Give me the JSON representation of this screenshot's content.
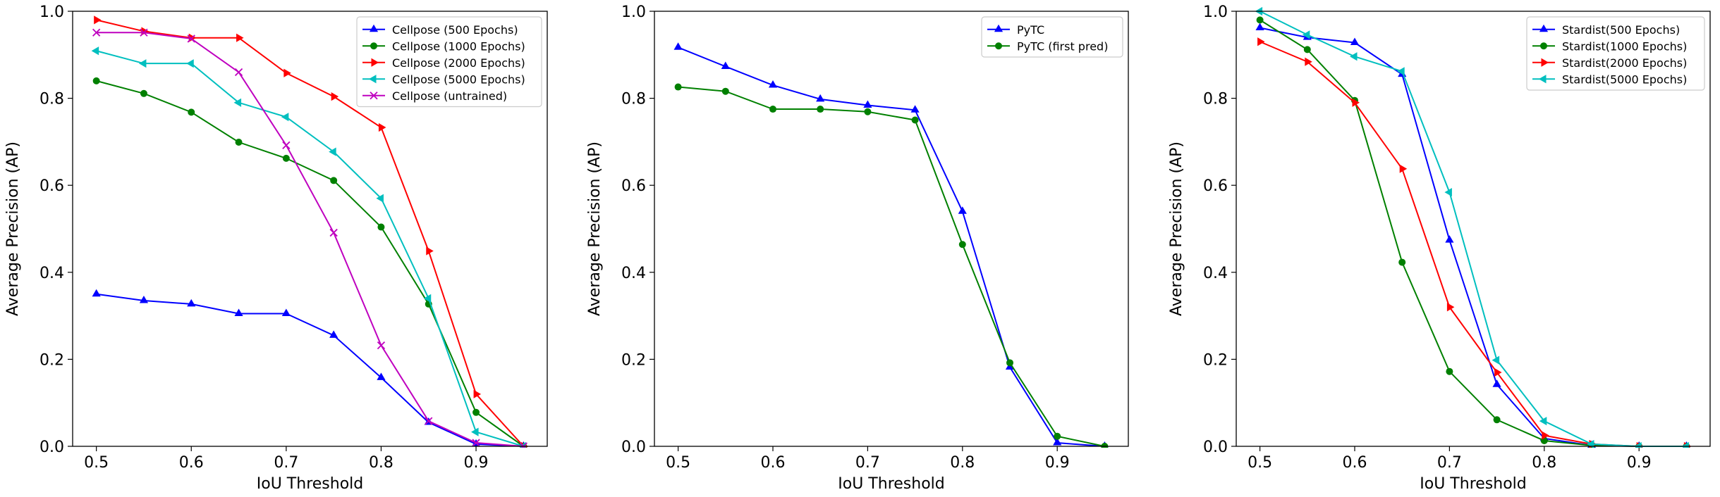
{
  "chart_data": [
    {
      "type": "line",
      "xlabel": "IoU Threshold",
      "ylabel": "Average Precision (AP)",
      "xlim": [
        0.475,
        0.975
      ],
      "ylim": [
        0.0,
        1.0
      ],
      "xticks": [
        "0.5",
        "0.6",
        "0.7",
        "0.8",
        "0.9"
      ],
      "xtick_values": [
        0.5,
        0.6,
        0.7,
        0.8,
        0.9
      ],
      "yticks": [
        "0.0",
        "0.2",
        "0.4",
        "0.6",
        "0.8",
        "1.0"
      ],
      "ytick_values": [
        0.0,
        0.2,
        0.4,
        0.6,
        0.8,
        1.0
      ],
      "grid": false,
      "legend_position": "top-right",
      "x": [
        0.5,
        0.55,
        0.6,
        0.65,
        0.7,
        0.75,
        0.8,
        0.85,
        0.9,
        0.95
      ],
      "series": [
        {
          "name": "Cellpose (500 Epochs)",
          "color": "#0000ff",
          "marker": "triangle-up",
          "values": [
            0.35,
            0.335,
            0.327,
            0.305,
            0.305,
            0.255,
            0.158,
            0.055,
            0.005,
            0.0
          ]
        },
        {
          "name": "Cellpose (1000 Epochs)",
          "color": "#008000",
          "marker": "circle",
          "values": [
            0.84,
            0.811,
            0.768,
            0.699,
            0.662,
            0.611,
            0.504,
            0.327,
            0.078,
            0.0
          ]
        },
        {
          "name": "Cellpose (2000 Epochs)",
          "color": "#ff0000",
          "marker": "triangle-right",
          "values": [
            0.98,
            0.954,
            0.939,
            0.939,
            0.858,
            0.804,
            0.733,
            0.449,
            0.12,
            0.0
          ]
        },
        {
          "name": "Cellpose (5000 Epochs)",
          "color": "#00bfbf",
          "marker": "triangle-left",
          "values": [
            0.909,
            0.88,
            0.88,
            0.79,
            0.757,
            0.677,
            0.57,
            0.34,
            0.033,
            0.0
          ]
        },
        {
          "name": "Cellpose (untrained)",
          "color": "#bf00bf",
          "marker": "x",
          "values": [
            0.951,
            0.951,
            0.937,
            0.86,
            0.692,
            0.491,
            0.232,
            0.058,
            0.008,
            0.0
          ]
        }
      ]
    },
    {
      "type": "line",
      "xlabel": "IoU Threshold",
      "ylabel": "Average Precision (AP)",
      "xlim": [
        0.475,
        0.975
      ],
      "ylim": [
        0.0,
        1.0
      ],
      "xticks": [
        "0.5",
        "0.6",
        "0.7",
        "0.8",
        "0.9"
      ],
      "xtick_values": [
        0.5,
        0.6,
        0.7,
        0.8,
        0.9
      ],
      "yticks": [
        "0.0",
        "0.2",
        "0.4",
        "0.6",
        "0.8",
        "1.0"
      ],
      "ytick_values": [
        0.0,
        0.2,
        0.4,
        0.6,
        0.8,
        1.0
      ],
      "grid": false,
      "legend_position": "top-right",
      "x": [
        0.5,
        0.55,
        0.6,
        0.65,
        0.7,
        0.75,
        0.8,
        0.85,
        0.9,
        0.95
      ],
      "series": [
        {
          "name": "PyTC",
          "color": "#0000ff",
          "marker": "triangle-up",
          "values": [
            0.917,
            0.873,
            0.83,
            0.798,
            0.784,
            0.773,
            0.54,
            0.182,
            0.008,
            0.0
          ]
        },
        {
          "name": "PyTC (first pred)",
          "color": "#008000",
          "marker": "circle",
          "values": [
            0.826,
            0.816,
            0.775,
            0.775,
            0.769,
            0.75,
            0.464,
            0.192,
            0.023,
            0.0
          ]
        }
      ]
    },
    {
      "type": "line",
      "xlabel": "IoU Threshold",
      "ylabel": "Average Precision (AP)",
      "xlim": [
        0.475,
        0.975
      ],
      "ylim": [
        0.0,
        1.0
      ],
      "xticks": [
        "0.5",
        "0.6",
        "0.7",
        "0.8",
        "0.9"
      ],
      "xtick_values": [
        0.5,
        0.6,
        0.7,
        0.8,
        0.9
      ],
      "yticks": [
        "0.0",
        "0.2",
        "0.4",
        "0.6",
        "0.8",
        "1.0"
      ],
      "ytick_values": [
        0.0,
        0.2,
        0.4,
        0.6,
        0.8,
        1.0
      ],
      "grid": false,
      "legend_position": "top-right",
      "x": [
        0.5,
        0.55,
        0.6,
        0.65,
        0.7,
        0.75,
        0.8,
        0.85,
        0.9,
        0.95
      ],
      "series": [
        {
          "name": "Stardist(500 Epochs)",
          "color": "#0000ff",
          "marker": "triangle-up",
          "values": [
            0.962,
            0.94,
            0.928,
            0.855,
            0.474,
            0.142,
            0.018,
            0.002,
            0.0,
            0.0
          ]
        },
        {
          "name": "Stardist(1000 Epochs)",
          "color": "#008000",
          "marker": "circle",
          "values": [
            0.98,
            0.912,
            0.795,
            0.423,
            0.172,
            0.061,
            0.013,
            0.002,
            0.0,
            0.0
          ]
        },
        {
          "name": "Stardist(2000 Epochs)",
          "color": "#ff0000",
          "marker": "triangle-right",
          "values": [
            0.93,
            0.884,
            0.79,
            0.638,
            0.32,
            0.17,
            0.025,
            0.005,
            0.0,
            0.0
          ]
        },
        {
          "name": "Stardist(5000 Epochs)",
          "color": "#00bfbf",
          "marker": "triangle-left",
          "values": [
            1.0,
            0.946,
            0.896,
            0.862,
            0.584,
            0.198,
            0.058,
            0.005,
            0.0,
            0.0
          ]
        }
      ]
    }
  ]
}
